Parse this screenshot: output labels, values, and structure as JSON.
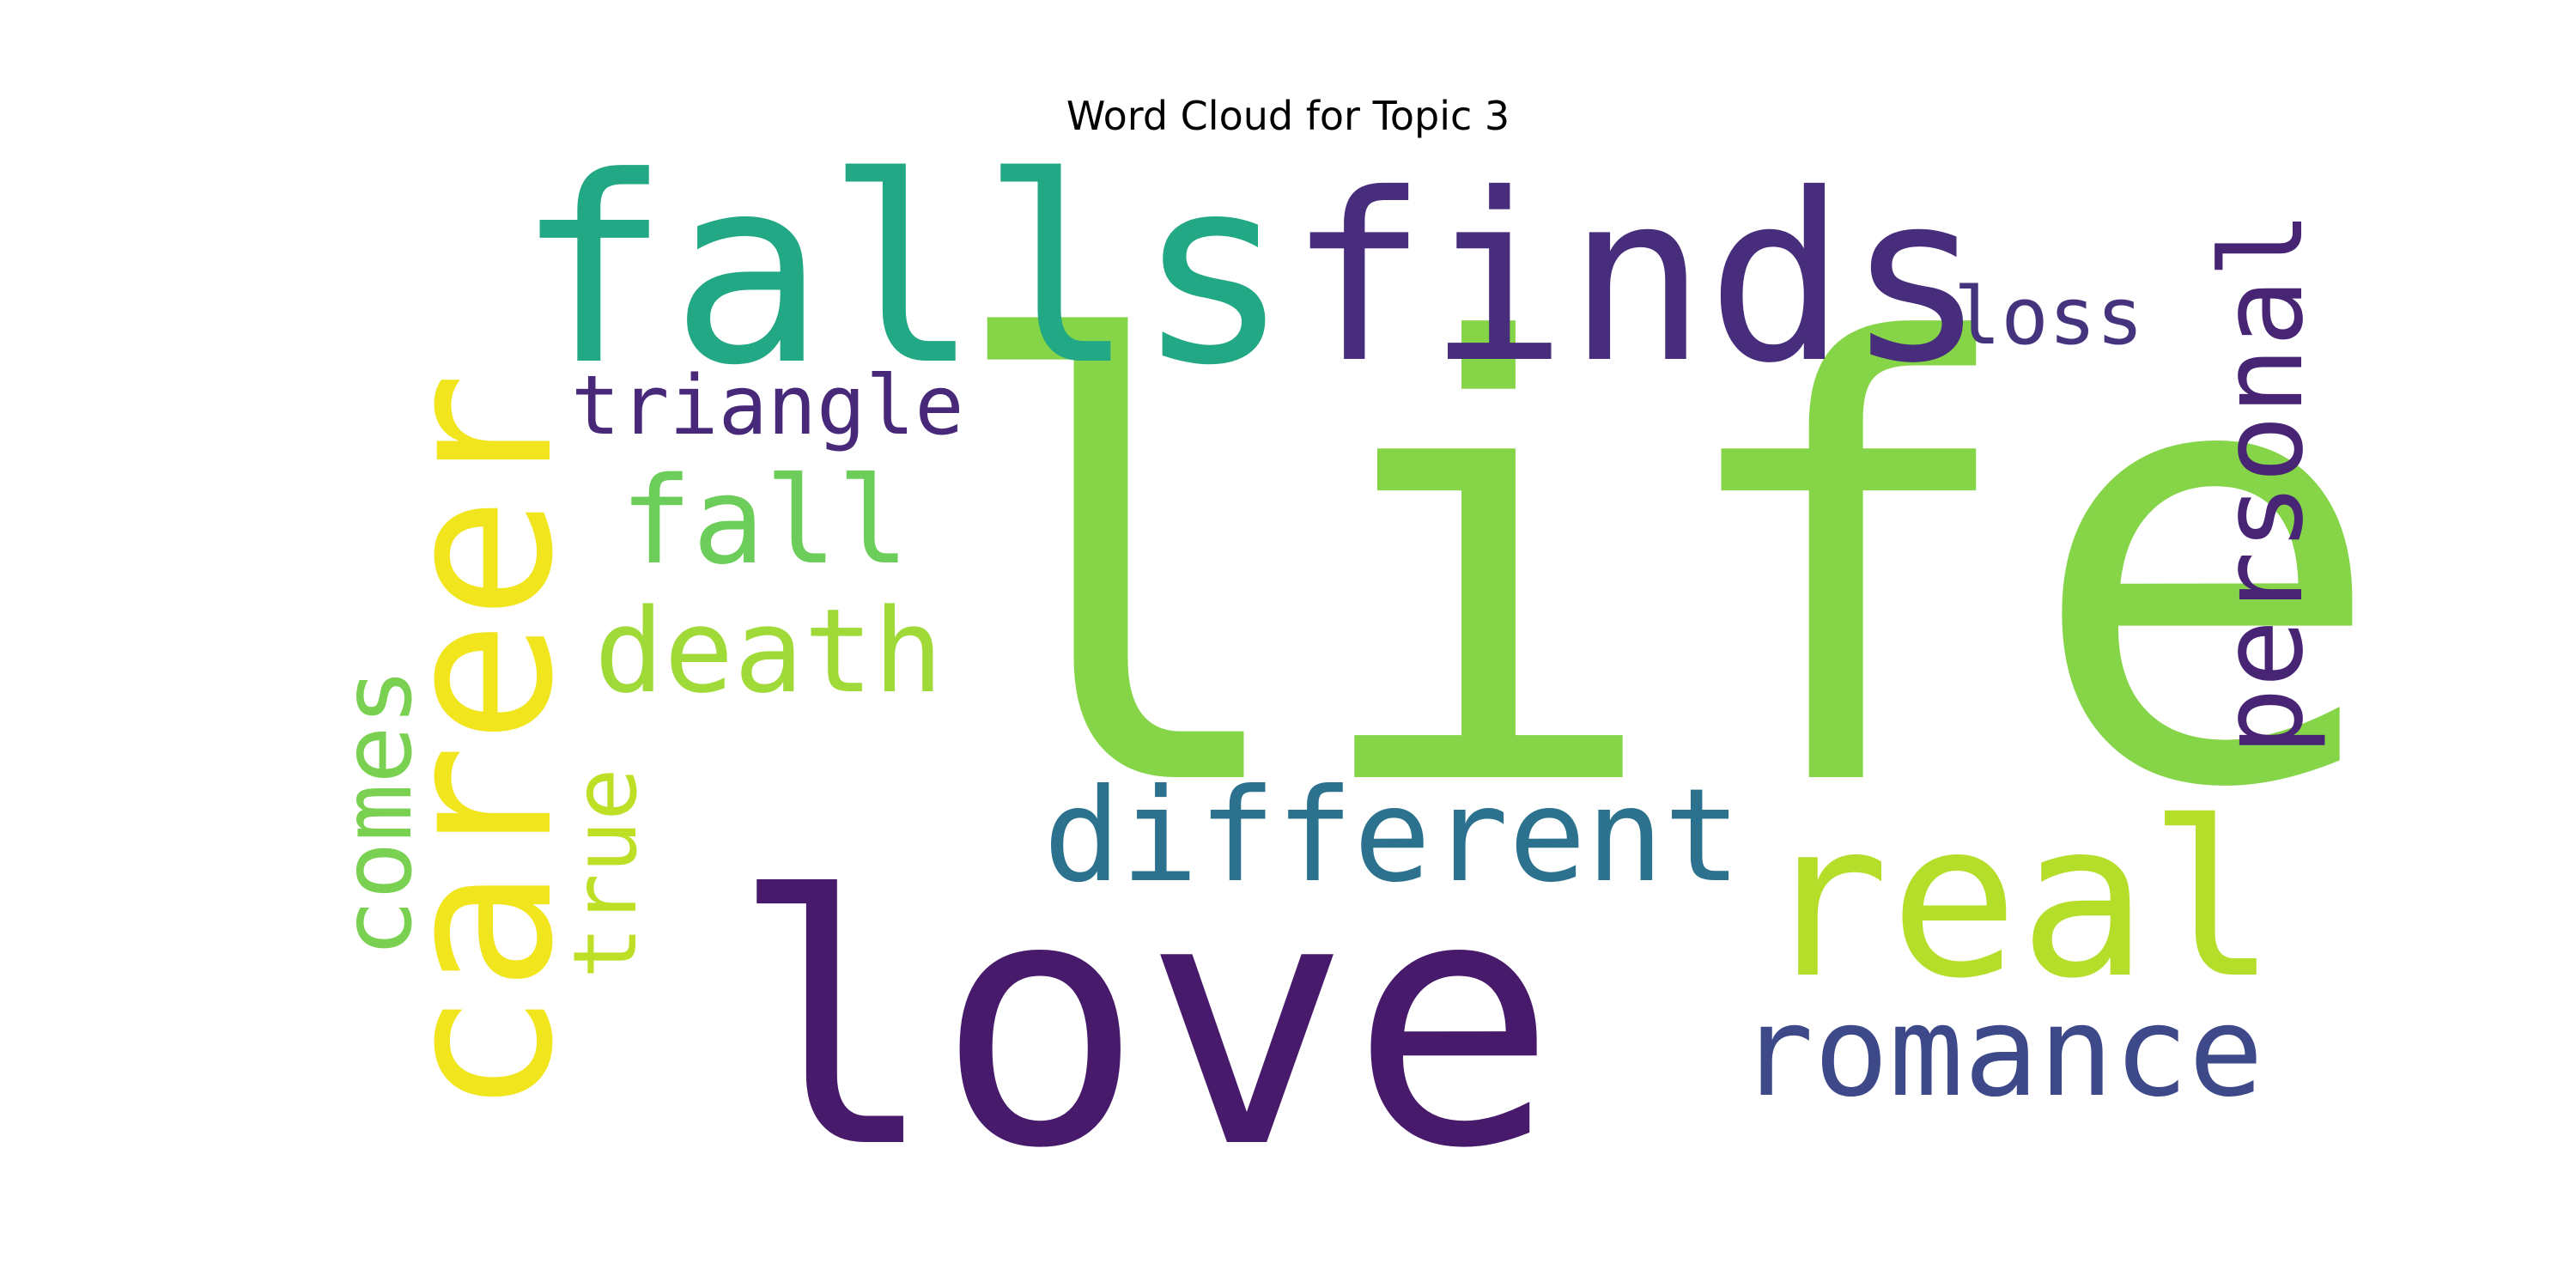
{
  "title": "Word Cloud for Topic 3",
  "words": [
    {
      "text": "life",
      "color": "#86d549"
    },
    {
      "text": "love",
      "color": "#481a6c"
    },
    {
      "text": "fallsfinds",
      "color": "#22a884"
    },
    {
      "text": "finds",
      "color": "#472d7b"
    },
    {
      "text": "falls",
      "color": "#22a884"
    },
    {
      "text": "career",
      "color": "#f1e51d"
    },
    {
      "text": "real",
      "color": "#b5de2b"
    },
    {
      "text": "personal",
      "color": "#482475"
    },
    {
      "text": "romance",
      "color": "#3e4989"
    },
    {
      "text": "different",
      "color": "#2c728e"
    },
    {
      "text": "death",
      "color": "#a0da39"
    },
    {
      "text": "fall",
      "color": "#6ccd5a"
    },
    {
      "text": "triangle",
      "color": "#482878"
    },
    {
      "text": "loss",
      "color": "#46337e"
    },
    {
      "text": "comes",
      "color": "#7ad151"
    },
    {
      "text": "true",
      "color": "#bddf26"
    }
  ]
}
